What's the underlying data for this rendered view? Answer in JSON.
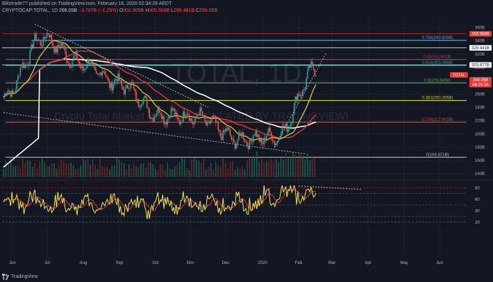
{
  "header": {
    "line1": "Blitztrade77 published on TradingView.com, February 16, 2020 02:34:28 AEDT",
    "line2_symbol": "CRYPTOCAP:TOTAL, 1D",
    "line2_close": "299.05B",
    "line2_change": "−3.787B (−1.25%)",
    "line2_o": "O",
    "line2_o_val": "302.905B",
    "line2_h": "H",
    "line2_h_val": "305.504B",
    "line2_l": "L",
    "line2_l_val": "296.481B",
    "line2_c": "C",
    "line2_c_val": "299.05B"
  },
  "footer": {
    "brand": "TradingView"
  },
  "watermark": {
    "symbol": "TOTAL, 1D",
    "subtitle": "Crypto Total Market Cap, $ (CALCULATED BY TRADINGVIEW)"
  },
  "colors": {
    "background": "#131722",
    "price_line": "#d1d4dc",
    "ma_yellow": "#e8d44d",
    "ma_red": "#e53935",
    "ma_white": "#ffffff",
    "rsi": "#f5e663",
    "rsi_signal": "#e53935",
    "fib_0": "#b2b5be",
    "fib_0236": "#e53935",
    "fib_0382": "#c0ca33",
    "fib_05": "#4caf50",
    "fib_0618": "#26a69a",
    "fib_0786": "#4aa3df",
    "fib_065": "#e91e63"
  },
  "chart_data": [
    {
      "type": "line",
      "title": "",
      "x_axis_labels": [
        "Jun",
        "Jul",
        "Aug",
        "Sep",
        "Oct",
        "Nov",
        "Dec",
        "2020",
        "Feb",
        "Mar",
        "Apr",
        "May",
        "Jun"
      ],
      "y_tick_labels": [
        "360B",
        "340B",
        "320B",
        "300B",
        "280B",
        "260B",
        "240B",
        "220B",
        "200B",
        "180B",
        "160B",
        "140B"
      ],
      "ylim": [
        135,
        370
      ],
      "y_unit": "B",
      "months": [
        "Jun",
        "Jul",
        "Aug",
        "Sep",
        "Oct",
        "Nov",
        "Dec",
        "2020",
        "Feb"
      ],
      "price_monthly": [
        255,
        345,
        305,
        275,
        228,
        225,
        192,
        195,
        299
      ],
      "fib_levels": [
        {
          "label": "0.786(340.609B)",
          "value": 340.609
        },
        {
          "label": "0.65(311.982B)",
          "value": 311.982
        },
        {
          "label": "0.618(303.056B)",
          "value": 303.056
        },
        {
          "label": "0.5(276.645B)",
          "value": 276.645
        },
        {
          "label": "0.382(250.255B)",
          "value": 250.255
        },
        {
          "label": "0.236(217.603B)",
          "value": 217.603
        },
        {
          "label": "0(164.821B)",
          "value": 164.821
        }
      ],
      "horizontal_lines": [
        350.568,
        329.441,
        303.677
      ],
      "price_tags": [
        {
          "text": "350.568B",
          "value": 350.568,
          "bg": "#e53935"
        },
        {
          "text": "329.441B",
          "value": 329.441,
          "bg": "#ffffff"
        },
        {
          "text": "303.677B",
          "value": 303.677,
          "bg": "#ffffff"
        },
        {
          "text": "TOTAL",
          "value": 299.05,
          "bg": "#e53935"
        },
        {
          "text": "299.05B",
          "value": 299.05,
          "bg": "#e53935"
        },
        {
          "text": "08:25:36",
          "value": 299.05,
          "bg": "#e53935"
        }
      ]
    },
    {
      "type": "line",
      "title": "",
      "indicator": "RSI",
      "y_tick_labels": [
        "80",
        "60",
        "40",
        "20"
      ],
      "ylim": [
        10,
        90
      ],
      "levels": [
        80,
        70,
        50,
        30,
        20
      ]
    }
  ]
}
